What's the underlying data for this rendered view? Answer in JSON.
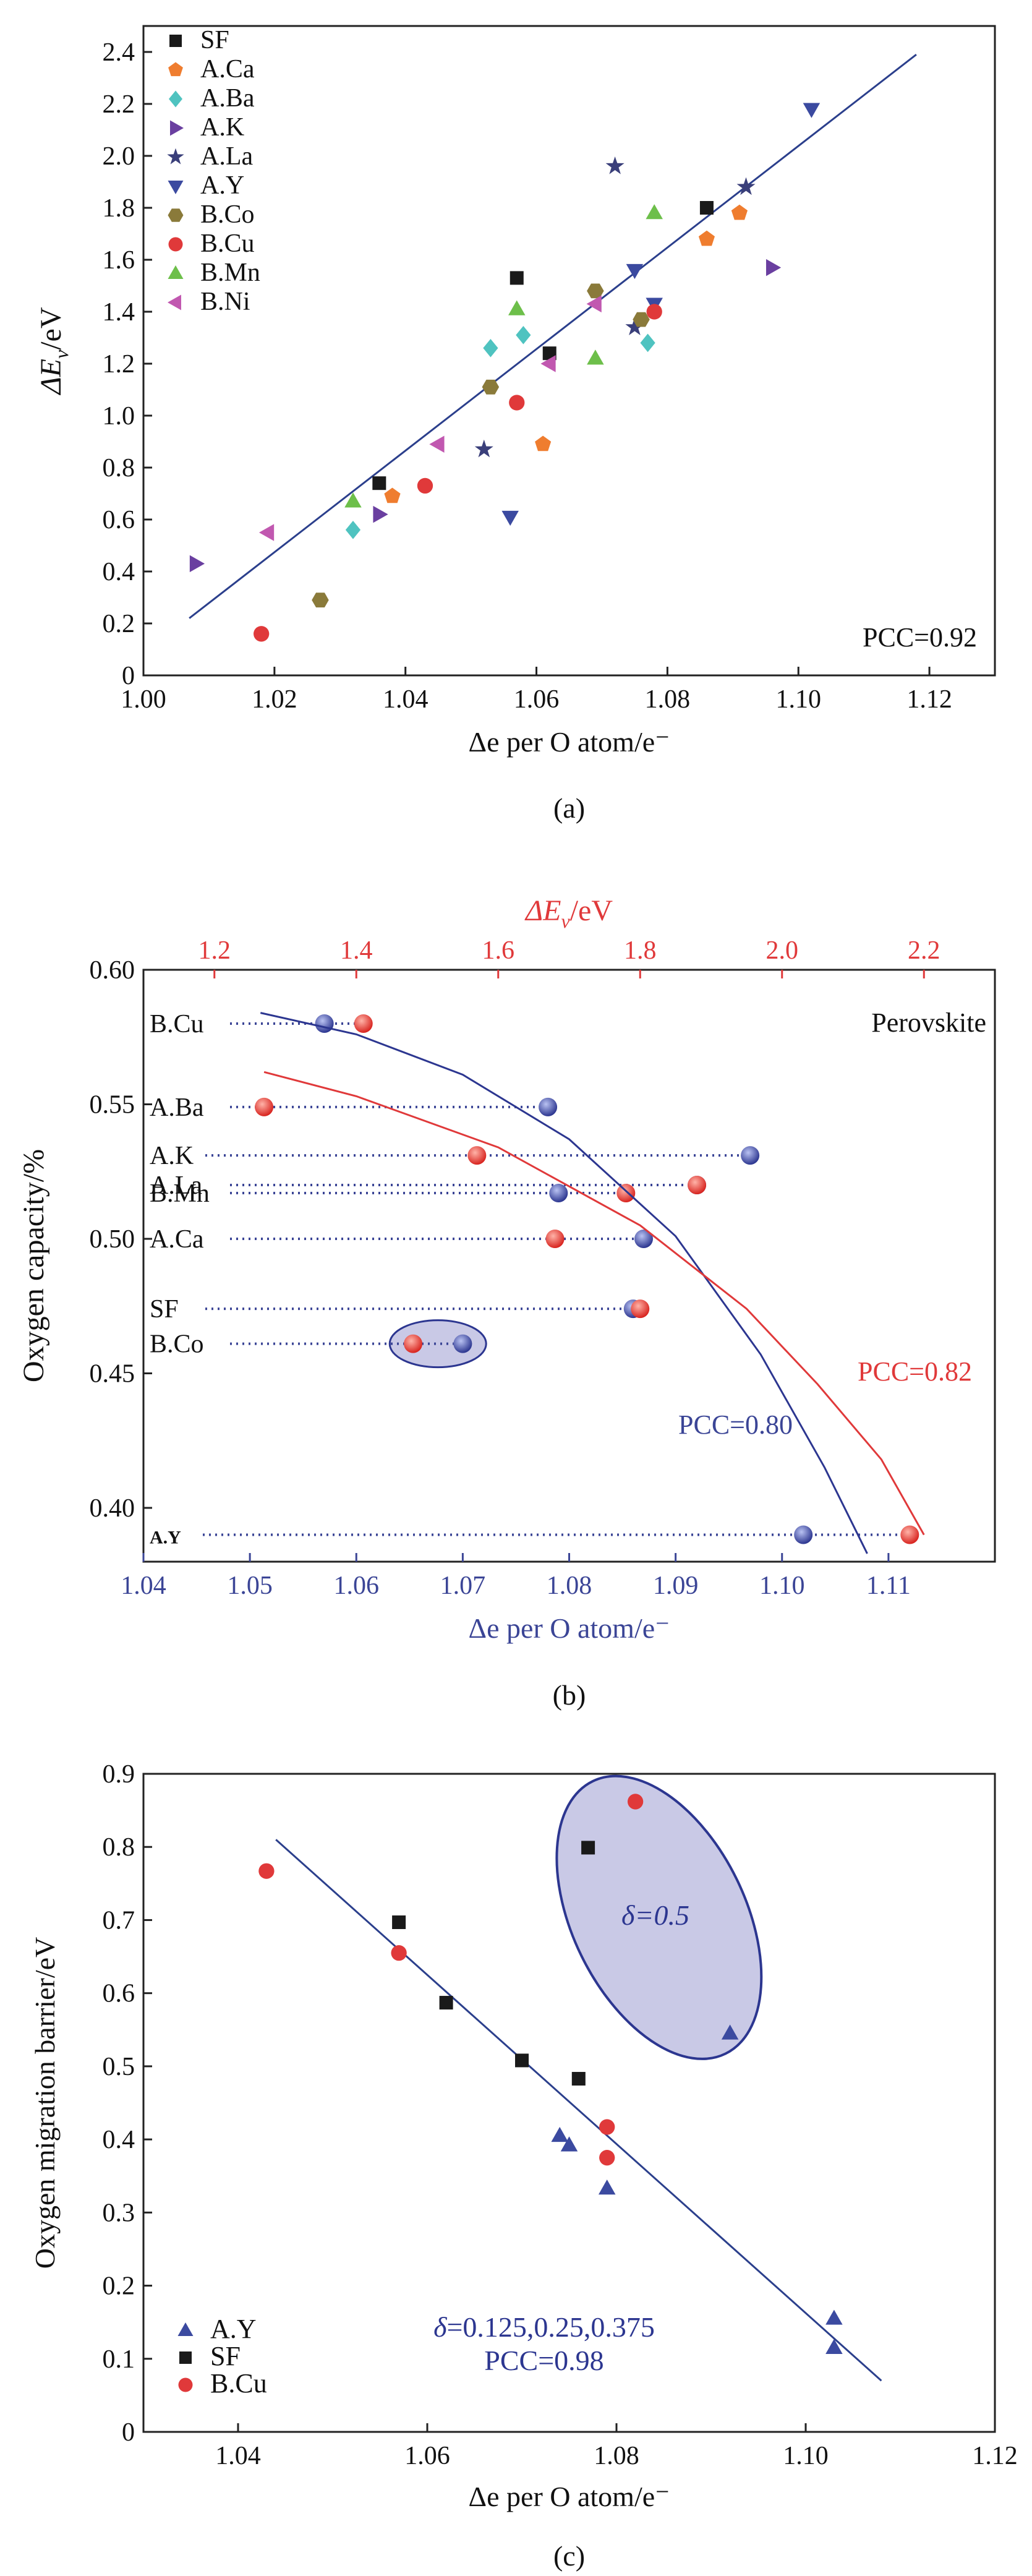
{
  "chart_data": [
    {
      "id": "a",
      "type": "scatter",
      "caption": "(a)",
      "xlabel": "Δe per O atom/e⁻",
      "ylabel_main": "ΔE",
      "ylabel_sub": "v",
      "ylabel_unit": "/eV",
      "xlim": [
        1.0,
        1.13
      ],
      "ylim": [
        0,
        2.5
      ],
      "xticks": [
        1.0,
        1.02,
        1.04,
        1.06,
        1.08,
        1.1,
        1.12
      ],
      "xtick_labels": [
        "1.00",
        "1.02",
        "1.04",
        "1.06",
        "1.08",
        "1.10",
        "1.12"
      ],
      "yticks": [
        0,
        0.2,
        0.4,
        0.6,
        0.8,
        1.0,
        1.2,
        1.4,
        1.6,
        1.8,
        2.0,
        2.2,
        2.4
      ],
      "ytick_labels": [
        "0",
        "0.2",
        "0.4",
        "0.6",
        "0.8",
        "1.0",
        "1.2",
        "1.4",
        "1.6",
        "1.8",
        "2.0",
        "2.2",
        "2.4"
      ],
      "annotation": "PCC=0.92",
      "fit_line": {
        "x": [
          1.007,
          1.118
        ],
        "y": [
          0.22,
          2.39
        ],
        "color": "#2b3f8c"
      },
      "series": [
        {
          "name": "SF",
          "marker": "square",
          "color": "#1a1a1a",
          "x": [
            1.036,
            1.057,
            1.062,
            1.086
          ],
          "y": [
            0.74,
            1.53,
            1.24,
            1.8
          ]
        },
        {
          "name": "A.Ca",
          "marker": "pentagon",
          "color": "#ef7d2f",
          "x": [
            1.038,
            1.061,
            1.086,
            1.091
          ],
          "y": [
            0.69,
            0.89,
            1.68,
            1.78
          ]
        },
        {
          "name": "A.Ba",
          "marker": "diamond",
          "color": "#4fc3c0",
          "x": [
            1.032,
            1.053,
            1.058,
            1.077
          ],
          "y": [
            0.56,
            1.26,
            1.31,
            1.28
          ]
        },
        {
          "name": "A.K",
          "marker": "tri-right",
          "color": "#6a3fa0",
          "x": [
            1.008,
            1.036,
            1.096
          ],
          "y": [
            0.43,
            0.62,
            1.57
          ]
        },
        {
          "name": "A.La",
          "marker": "star",
          "color": "#3a3f7a",
          "x": [
            1.052,
            1.072,
            1.075,
            1.092
          ],
          "y": [
            0.87,
            1.96,
            1.34,
            1.88
          ]
        },
        {
          "name": "A.Y",
          "marker": "tri-down",
          "color": "#3b4aa0",
          "x": [
            1.056,
            1.075,
            1.078,
            1.102
          ],
          "y": [
            0.61,
            1.56,
            1.43,
            2.18
          ]
        },
        {
          "name": "B.Co",
          "marker": "hexagon",
          "color": "#8a7a3a",
          "x": [
            1.027,
            1.053,
            1.069,
            1.076
          ],
          "y": [
            0.29,
            1.11,
            1.48,
            1.37
          ]
        },
        {
          "name": "B.Cu",
          "marker": "circle",
          "color": "#e0393a",
          "x": [
            1.018,
            1.043,
            1.057,
            1.078
          ],
          "y": [
            0.16,
            0.73,
            1.05,
            1.4
          ]
        },
        {
          "name": "B.Mn",
          "marker": "tri-up",
          "color": "#6dbf4a",
          "x": [
            1.032,
            1.057,
            1.069,
            1.078
          ],
          "y": [
            0.67,
            1.41,
            1.22,
            1.78
          ]
        },
        {
          "name": "B.Ni",
          "marker": "tri-left",
          "color": "#c158b0",
          "x": [
            1.019,
            1.045,
            1.062,
            1.069
          ],
          "y": [
            0.55,
            0.89,
            1.2,
            1.43
          ]
        }
      ]
    },
    {
      "id": "b",
      "type": "scatter",
      "caption": "(b)",
      "xlabel_bottom": "Δe per O atom/e⁻",
      "xlabel_top_main": "ΔE",
      "xlabel_top_sub": "v",
      "xlabel_top_unit": "/eV",
      "ylabel": "Oxygen capacity/%",
      "xlim_bottom": [
        1.04,
        1.12
      ],
      "xlim_top": [
        1.1,
        2.3
      ],
      "ylim": [
        0.38,
        0.6
      ],
      "xticks_bottom": [
        1.04,
        1.05,
        1.06,
        1.07,
        1.08,
        1.09,
        1.1,
        1.11
      ],
      "xtick_labels_bottom": [
        "1.04",
        "1.05",
        "1.06",
        "1.07",
        "1.08",
        "1.09",
        "1.10",
        "1.11"
      ],
      "xticks_top": [
        1.2,
        1.4,
        1.6,
        1.8,
        2.0,
        2.2
      ],
      "xtick_labels_top": [
        "1.2",
        "1.4",
        "1.6",
        "1.8",
        "2.0",
        "2.2"
      ],
      "yticks": [
        0.4,
        0.45,
        0.5,
        0.55,
        0.6
      ],
      "ytick_labels": [
        "0.40",
        "0.45",
        "0.50",
        "0.55",
        "0.60"
      ],
      "panel_title": "Perovskite",
      "pcc_red": "PCC=0.82",
      "pcc_blue": "PCC=0.80",
      "bottom_color": "#3b4596",
      "top_color": "#e0393a",
      "rows": [
        {
          "label": "B.Cu",
          "y": 0.58,
          "de": 1.057,
          "dEv": 1.41
        },
        {
          "label": "A.Ba",
          "y": 0.549,
          "de": 1.078,
          "dEv": 1.27
        },
        {
          "label": "A.K",
          "y": 0.531,
          "de": 1.097,
          "dEv": 1.57
        },
        {
          "label": "A.La",
          "y": 0.52,
          "de": 1.092,
          "dEv": 1.88
        },
        {
          "label": "B.Mn",
          "y": 0.517,
          "de": 1.079,
          "dEv": 1.78
        },
        {
          "label": "A.Ca",
          "y": 0.5,
          "de": 1.087,
          "dEv": 1.68
        },
        {
          "label": "SF",
          "y": 0.474,
          "de": 1.086,
          "dEv": 1.8
        },
        {
          "label": "B.Co",
          "y": 0.461,
          "de": 1.07,
          "dEv": 1.48
        },
        {
          "label": "A.Y",
          "y": 0.39,
          "de": 1.102,
          "dEv": 2.18
        }
      ],
      "blue_curve": {
        "x": [
          1.051,
          1.06,
          1.07,
          1.08,
          1.09,
          1.098,
          1.104,
          1.108
        ],
        "y": [
          0.584,
          0.576,
          0.561,
          0.537,
          0.501,
          0.457,
          0.415,
          0.383
        ]
      },
      "red_curve_dEv": {
        "x": [
          1.27,
          1.4,
          1.6,
          1.8,
          1.95,
          2.05,
          2.14,
          2.2
        ],
        "y": [
          0.562,
          0.553,
          0.534,
          0.505,
          0.474,
          0.446,
          0.418,
          0.39
        ]
      }
    },
    {
      "id": "c",
      "type": "scatter",
      "caption": "(c)",
      "xlabel": "Δe per O atom/e⁻",
      "ylabel": "Oxygen migration barrier/eV",
      "xlim": [
        1.03,
        1.12
      ],
      "ylim": [
        0,
        0.9
      ],
      "xticks": [
        1.04,
        1.06,
        1.08,
        1.1,
        1.12
      ],
      "xtick_labels": [
        "1.04",
        "1.06",
        "1.08",
        "1.10",
        "1.12"
      ],
      "yticks": [
        0,
        0.1,
        0.2,
        0.3,
        0.4,
        0.5,
        0.6,
        0.7,
        0.8,
        0.9
      ],
      "ytick_labels": [
        "0",
        "0.1",
        "0.2",
        "0.3",
        "0.4",
        "0.5",
        "0.6",
        "0.7",
        "0.8",
        "0.9"
      ],
      "ellipse_label_sym": "δ",
      "ellipse_label_val": "=0.5",
      "fit_label_sym": "δ",
      "fit_label_val": "=0.125,0.25,0.375",
      "annotation": "PCC=0.98",
      "fit_line": {
        "x": [
          1.044,
          1.108
        ],
        "y": [
          0.81,
          0.07
        ],
        "color": "#2b3f8c"
      },
      "series": [
        {
          "name": "A.Y",
          "marker": "tri-up",
          "color": "#3b4aa0",
          "x": [
            1.074,
            1.075,
            1.079,
            1.092,
            1.103,
            1.103
          ],
          "y": [
            0.405,
            0.392,
            0.333,
            0.545,
            0.155,
            0.115
          ]
        },
        {
          "name": "SF",
          "marker": "square",
          "color": "#1a1a1a",
          "x": [
            1.057,
            1.062,
            1.07,
            1.076,
            1.077
          ],
          "y": [
            0.697,
            0.587,
            0.508,
            0.483,
            0.799
          ]
        },
        {
          "name": "B.Cu",
          "marker": "circle",
          "color": "#e0393a",
          "x": [
            1.043,
            1.057,
            1.079,
            1.079,
            1.082
          ],
          "y": [
            0.767,
            0.655,
            0.417,
            0.375,
            0.862
          ]
        }
      ]
    }
  ]
}
